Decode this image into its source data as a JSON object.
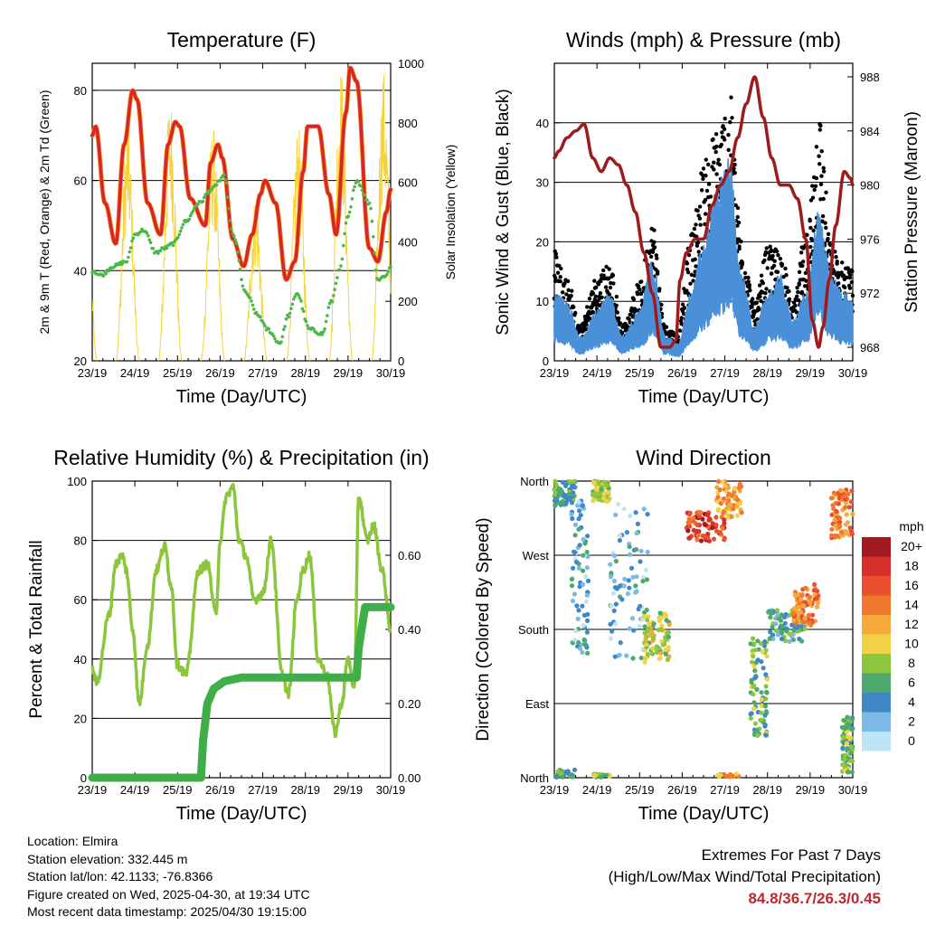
{
  "chart_data": [
    {
      "type": "line",
      "title": "Temperature (F)",
      "xlabel": "Time (Day/UTC)",
      "ylabel": "2m & 9m T (Red, Orange) & 2m Td (Green)",
      "ylabel_right": "Solar Insolation (Yellow)",
      "x_ticks": [
        "23/19",
        "24/19",
        "25/19",
        "26/19",
        "27/19",
        "28/19",
        "29/19",
        "30/19"
      ],
      "ylim": [
        20,
        86
      ],
      "y_ticks": [
        20,
        40,
        60,
        80
      ],
      "y2lim": [
        0,
        1000
      ],
      "y2_ticks": [
        0,
        200,
        400,
        600,
        800,
        1000
      ],
      "grid": "horizontal at 40, 60, 80",
      "colors": {
        "t2m": "#d62728",
        "t9m": "#ff8c1a",
        "td": "#4cb848",
        "solar": "#f5d33a"
      },
      "series": [
        {
          "name": "2m T",
          "x_days": [
            0,
            0.08,
            0.3,
            0.55,
            0.75,
            0.95,
            1.05,
            1.3,
            1.6,
            1.78,
            1.95,
            2.05,
            2.3,
            2.65,
            2.78,
            2.95,
            3.05,
            3.3,
            3.55,
            3.75,
            3.95,
            4.05,
            4.3,
            4.55,
            4.75,
            4.95,
            5.05,
            5.3,
            5.55,
            5.72,
            5.95,
            6.05,
            6.2,
            6.5,
            6.7,
            6.9,
            7.0
          ],
          "values": [
            70,
            72,
            55,
            46,
            68,
            80,
            78,
            55,
            48,
            68,
            73,
            72,
            56,
            50,
            64,
            68,
            65,
            47,
            41,
            48,
            57,
            60,
            55,
            38,
            42,
            62,
            72,
            72,
            57,
            48,
            75,
            85,
            82,
            45,
            42,
            53,
            58
          ]
        },
        {
          "name": "Td",
          "x_days": [
            0,
            0.2,
            0.5,
            0.8,
            1.0,
            1.2,
            1.5,
            1.7,
            1.9,
            2.2,
            2.5,
            2.8,
            3.0,
            3.1,
            3.3,
            3.6,
            3.9,
            4.1,
            4.4,
            4.6,
            4.8,
            5.1,
            5.4,
            5.6,
            5.8,
            6.0,
            6.2,
            6.5,
            6.7,
            6.9,
            7.0
          ],
          "values": [
            40,
            39,
            41,
            42,
            48,
            49,
            44,
            45,
            46,
            51,
            55,
            58,
            60,
            61,
            48,
            35,
            30,
            27,
            24,
            30,
            35,
            27,
            26,
            33,
            40,
            52,
            60,
            55,
            38,
            39,
            41
          ]
        }
      ],
      "solar_peaks_w": [
        950,
        800,
        900,
        800,
        560,
        800,
        1000,
        980
      ]
    },
    {
      "type": "line",
      "title": "Winds (mph) & Pressure (mb)",
      "xlabel": "Time (Day/UTC)",
      "ylabel": "Sonic Wind & Gust (Blue, Black)",
      "ylabel_right": "Station Pressure (Maroon)",
      "x_ticks": [
        "23/19",
        "24/19",
        "25/19",
        "26/19",
        "27/19",
        "28/19",
        "29/19",
        "30/19"
      ],
      "ylim": [
        0,
        50
      ],
      "y_ticks": [
        0,
        10,
        20,
        30,
        40
      ],
      "y2lim": [
        967,
        989
      ],
      "y2_ticks": [
        968,
        972,
        976,
        980,
        984,
        988
      ],
      "grid": "horizontal at 10, 20, 30, 40",
      "colors": {
        "wind": "#4a90d9",
        "gust": "#000000",
        "pressure": "#9e1b1b"
      },
      "series": [
        {
          "name": "Station Pressure",
          "x_days": [
            0,
            0.1,
            0.3,
            0.5,
            0.7,
            0.9,
            1.1,
            1.3,
            1.5,
            1.7,
            1.9,
            2.1,
            2.3,
            2.5,
            2.7,
            2.85,
            2.95,
            3.1,
            3.3,
            3.5,
            3.7,
            3.9,
            4.1,
            4.3,
            4.5,
            4.7,
            4.9,
            5.1,
            5.3,
            5.5,
            5.7,
            5.9,
            6.05,
            6.2,
            6.3,
            6.45,
            6.6,
            6.8,
            6.95,
            7.0
          ],
          "values": [
            982,
            982.5,
            983.5,
            984,
            984.5,
            982,
            981,
            982,
            981.5,
            980,
            978,
            975,
            972,
            968,
            968,
            968.5,
            973,
            975,
            976,
            976,
            978.5,
            980,
            981,
            983.5,
            986,
            988,
            985,
            982,
            980,
            980,
            979,
            976,
            970,
            968,
            969.5,
            973,
            977,
            981,
            980.5,
            980
          ]
        },
        {
          "name": "Sonic Wind",
          "x_days": [
            0,
            0.3,
            0.6,
            1.0,
            1.3,
            1.6,
            2.0,
            2.3,
            2.6,
            2.9,
            3.2,
            3.5,
            3.8,
            4.1,
            4.4,
            4.7,
            5.0,
            5.3,
            5.6,
            5.9,
            6.2,
            6.5,
            6.8,
            7.0
          ],
          "values": [
            8,
            7,
            3,
            6,
            8,
            3,
            6,
            12,
            3,
            2,
            8,
            14,
            20,
            24,
            10,
            4,
            8,
            10,
            5,
            8,
            18,
            10,
            8,
            7
          ]
        },
        {
          "name": "Gust",
          "x_days": [
            0,
            0.3,
            0.6,
            1.0,
            1.3,
            1.6,
            2.0,
            2.3,
            2.6,
            2.9,
            3.2,
            3.5,
            3.8,
            4.1,
            4.4,
            4.7,
            5.0,
            5.3,
            5.6,
            5.9,
            6.2,
            6.5,
            6.8,
            7.0
          ],
          "values": [
            16,
            12,
            5,
            12,
            14,
            5,
            11,
            20,
            5,
            4,
            18,
            28,
            33,
            38,
            18,
            8,
            16,
            16,
            8,
            18,
            36,
            16,
            14,
            13
          ]
        }
      ]
    },
    {
      "type": "line",
      "title": "Relative Humidity (%) & Precipitation (in)",
      "xlabel": "Time (Day/UTC)",
      "ylabel": "Percent & Total Rainfall",
      "x_ticks": [
        "23/19",
        "24/19",
        "25/19",
        "26/19",
        "27/19",
        "28/19",
        "29/19",
        "30/19"
      ],
      "ylim": [
        0,
        100
      ],
      "y_ticks": [
        0,
        20,
        40,
        60,
        80,
        100
      ],
      "y2lim": [
        0,
        0.8
      ],
      "y2_ticks": [
        "0.00",
        "0.20",
        "0.40",
        "0.60"
      ],
      "grid": "horizontal at 20, 40, 60, 80, 100",
      "colors": {
        "rh": "#8cc63f",
        "precip": "#3fae49"
      },
      "series": [
        {
          "name": "Relative Humidity",
          "x_days": [
            0,
            0.1,
            0.4,
            0.55,
            0.7,
            0.8,
            0.95,
            1.1,
            1.3,
            1.5,
            1.7,
            1.85,
            2.0,
            2.2,
            2.5,
            2.7,
            2.9,
            3.0,
            3.15,
            3.3,
            3.45,
            3.6,
            3.8,
            4.0,
            4.2,
            4.45,
            4.6,
            4.8,
            4.95,
            5.1,
            5.3,
            5.5,
            5.7,
            5.85,
            6.0,
            6.15,
            6.25,
            6.45,
            6.6,
            6.8,
            7.0
          ],
          "values": [
            37,
            32,
            55,
            72,
            75,
            70,
            50,
            25,
            45,
            70,
            78,
            65,
            38,
            35,
            70,
            72,
            55,
            80,
            95,
            98,
            80,
            75,
            60,
            62,
            80,
            35,
            28,
            60,
            70,
            75,
            40,
            35,
            15,
            25,
            40,
            30,
            95,
            80,
            85,
            70,
            50
          ]
        },
        {
          "name": "Total Precipitation",
          "x_days": [
            0,
            2.55,
            2.6,
            2.7,
            2.85,
            3.1,
            3.5,
            4.5,
            5.5,
            6.2,
            6.25,
            6.4,
            7.0
          ],
          "values": [
            0.0,
            0.0,
            0.1,
            0.2,
            0.24,
            0.26,
            0.27,
            0.27,
            0.27,
            0.27,
            0.35,
            0.46,
            0.46
          ]
        }
      ]
    },
    {
      "type": "scatter",
      "title": "Wind Direction",
      "xlabel": "Time (Day/UTC)",
      "ylabel": "Direction (Colored By Speed)",
      "x_ticks": [
        "23/19",
        "24/19",
        "25/19",
        "26/19",
        "27/19",
        "28/19",
        "29/19",
        "30/19"
      ],
      "y_ticks": [
        "North",
        "East",
        "South",
        "West",
        "North"
      ],
      "ylim": [
        0,
        360
      ],
      "grid": "horizontal at East, South, West",
      "legend": {
        "title": "mph",
        "labels": [
          "20+",
          "18",
          "16",
          "14",
          "12",
          "10",
          "8",
          "6",
          "4",
          "2",
          "0"
        ],
        "colors": [
          "#a11a1f",
          "#d7302c",
          "#e9502e",
          "#f0782e",
          "#f6a83b",
          "#f0d244",
          "#8cc63f",
          "#4daa6a",
          "#3f88c5",
          "#7cb9e5",
          "#bfe3f7"
        ]
      },
      "clusters": [
        {
          "x_start": 0.0,
          "x_end": 0.5,
          "dir_center": 350,
          "dir_spread": 20,
          "speed": 6
        },
        {
          "x_start": 0.4,
          "x_end": 0.8,
          "dir_center": 250,
          "dir_spread": 100,
          "speed": 3
        },
        {
          "x_start": 0.9,
          "x_end": 1.3,
          "dir_center": 350,
          "dir_spread": 15,
          "speed": 8
        },
        {
          "x_start": 1.3,
          "x_end": 2.2,
          "dir_center": 240,
          "dir_spread": 100,
          "speed": 3
        },
        {
          "x_start": 2.1,
          "x_end": 2.7,
          "dir_center": 170,
          "dir_spread": 30,
          "speed": 9
        },
        {
          "x_start": 3.1,
          "x_end": 4.0,
          "dir_center": 305,
          "dir_spread": 18,
          "speed": 17
        },
        {
          "x_start": 3.8,
          "x_end": 4.4,
          "dir_center": 340,
          "dir_spread": 25,
          "speed": 12
        },
        {
          "x_start": 4.6,
          "x_end": 5.0,
          "dir_center": 110,
          "dir_spread": 60,
          "speed": 7
        },
        {
          "x_start": 5.0,
          "x_end": 5.9,
          "dir_center": 185,
          "dir_spread": 20,
          "speed": 5
        },
        {
          "x_start": 5.6,
          "x_end": 6.2,
          "dir_center": 210,
          "dir_spread": 25,
          "speed": 14
        },
        {
          "x_start": 6.5,
          "x_end": 7.0,
          "dir_center": 320,
          "dir_spread": 30,
          "speed": 14
        },
        {
          "x_start": 6.75,
          "x_end": 7.0,
          "dir_center": 40,
          "dir_spread": 35,
          "speed": 7
        }
      ]
    }
  ],
  "station": {
    "location": "Location: Elmira",
    "elevation": "Station elevation: 332.445 m",
    "latlon": "Station lat/lon: 42.1133; -76.8366",
    "created": "Figure created on Wed, 2025-04-30, at 19:34 UTC",
    "latest": "Most recent data timestamp: 2025/04/30 19:15:00"
  },
  "extremes": {
    "title": "Extremes For Past 7 Days",
    "subtitle": "(High/Low/Max Wind/Total Precipitation)",
    "values": "84.8/36.7/26.3/0.45"
  }
}
